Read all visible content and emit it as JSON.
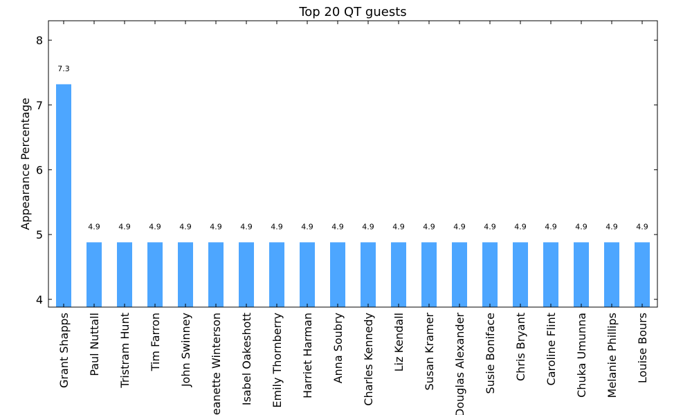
{
  "chart_data": {
    "type": "bar",
    "title": "Top 20 QT guests",
    "xlabel": "",
    "ylabel": "Appearance Percentage",
    "ylim": [
      3.88,
      8.3
    ],
    "yticks": [
      4,
      5,
      6,
      7,
      8
    ],
    "grid": false,
    "legend": "none",
    "bar_color": "#4da6ff",
    "categories": [
      "Grant Shapps",
      "Paul Nuttall",
      "Tristram Hunt",
      "Tim Farron",
      "John Swinney",
      "Jeanette Winterson",
      "Isabel Oakeshott",
      "Emily Thornberry",
      "Harriet Harman",
      "Anna Soubry",
      "Charles Kennedy",
      "Liz Kendall",
      "Susan Kramer",
      "Douglas Alexander",
      "Susie Boniface",
      "Chris Bryant",
      "Caroline Flint",
      "Chuka Umunna",
      "Melanie Phillips",
      "Louise Bours"
    ],
    "values": [
      7.32,
      4.88,
      4.88,
      4.88,
      4.88,
      4.88,
      4.88,
      4.88,
      4.88,
      4.88,
      4.88,
      4.88,
      4.88,
      4.88,
      4.88,
      4.88,
      4.88,
      4.88,
      4.88,
      4.88
    ],
    "data_labels": [
      "7.3",
      "4.9",
      "4.9",
      "4.9",
      "4.9",
      "4.9",
      "4.9",
      "4.9",
      "4.9",
      "4.9",
      "4.9",
      "4.9",
      "4.9",
      "4.9",
      "4.9",
      "4.9",
      "4.9",
      "4.9",
      "4.9",
      "4.9"
    ]
  }
}
